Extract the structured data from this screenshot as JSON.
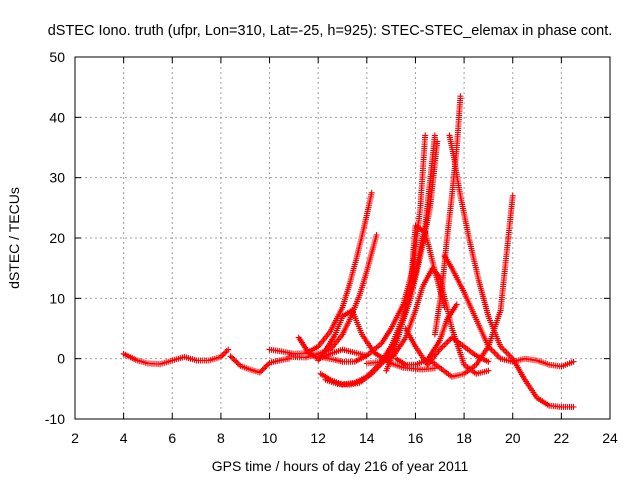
{
  "chart_data": {
    "type": "scatter",
    "title": "dSTEC Iono. truth (ufpr, Lon=310, Lat=-25, h=925): STEC-STEC_elemax in phase cont.",
    "xlabel": "GPS time / hours of day 216 of year 2011",
    "ylabel": "dSTEC  / TECUs",
    "xlim": [
      2,
      24
    ],
    "ylim": [
      -10,
      50
    ],
    "xticks": [
      2,
      4,
      6,
      8,
      10,
      12,
      14,
      16,
      18,
      20,
      22,
      24
    ],
    "yticks": [
      -10,
      0,
      10,
      20,
      30,
      40,
      50
    ],
    "grid": true,
    "marker": "+",
    "series_color": "#ff0000",
    "series": [
      {
        "x": [
          4.0,
          4.5,
          5.0,
          5.5,
          6.0,
          6.5,
          7.0,
          7.5,
          8.0,
          8.3
        ],
        "y": [
          0.8,
          -0.2,
          -0.8,
          -0.9,
          -0.3,
          0.3,
          -0.3,
          -0.3,
          0.3,
          1.5
        ]
      },
      {
        "x": [
          8.4,
          8.8,
          9.2,
          9.6,
          10.0,
          10.4,
          10.8
        ],
        "y": [
          0.4,
          -1.2,
          -1.8,
          -2.3,
          -0.7,
          -0.3,
          0.0
        ]
      },
      {
        "x": [
          10.0,
          10.5,
          11.0,
          11.5,
          12.0,
          12.5,
          13.0,
          13.3,
          13.6,
          13.9,
          14.2
        ],
        "y": [
          1.5,
          1.2,
          0.8,
          0.9,
          2.0,
          4.5,
          8.5,
          12.5,
          17.0,
          22.0,
          27.5
        ]
      },
      {
        "x": [
          11.2,
          11.6,
          12.0,
          12.5,
          13.0,
          13.5,
          14.0
        ],
        "y": [
          3.5,
          1.0,
          0.0,
          0.8,
          1.5,
          1.0,
          0.5
        ]
      },
      {
        "x": [
          10.8,
          11.5,
          12.0,
          12.5,
          13.0,
          13.3,
          13.7,
          14.0,
          14.4
        ],
        "y": [
          0.3,
          0.2,
          0.8,
          1.5,
          4.0,
          6.5,
          10.5,
          14.5,
          20.5
        ]
      },
      {
        "x": [
          12.0,
          12.4,
          12.7,
          13.0,
          13.4
        ],
        "y": [
          -0.3,
          2.0,
          4.0,
          7.0,
          8.0
        ]
      },
      {
        "x": [
          13.4,
          13.8,
          14.3,
          15.0,
          15.5,
          16.0,
          16.3,
          16.8
        ],
        "y": [
          8.0,
          4.0,
          1.0,
          -0.8,
          -1.5,
          -1.7,
          -1.8,
          -1.6
        ]
      },
      {
        "x": [
          12.2,
          12.7,
          13.0,
          13.5,
          14.0,
          14.6,
          15.0,
          15.5,
          15.9,
          16.2,
          16.4
        ],
        "y": [
          0.2,
          -0.2,
          -0.5,
          -0.5,
          0.5,
          2.5,
          5.0,
          9.0,
          15.0,
          25.0,
          37.0
        ]
      },
      {
        "x": [
          12.1,
          12.5,
          13.0,
          13.5,
          14.0,
          14.5,
          15.0,
          15.5,
          16.0,
          16.4,
          16.8
        ],
        "y": [
          -2.5,
          -3.5,
          -4.3,
          -4.0,
          -3.0,
          -1.0,
          2.0,
          7.0,
          14.0,
          22.0,
          37.0
        ]
      },
      {
        "x": [
          12.3,
          12.8,
          13.3,
          13.7,
          14.2,
          14.8,
          15.3,
          15.8,
          16.2,
          16.6,
          16.9
        ],
        "y": [
          -3.5,
          -4.2,
          -4.3,
          -4.0,
          -2.5,
          0.0,
          4.0,
          10.0,
          17.0,
          25.0,
          36.0
        ]
      },
      {
        "x": [
          14.0,
          14.6,
          15.1,
          15.6,
          16.0,
          16.3,
          16.7,
          17.0,
          17.5,
          18.0,
          18.5,
          19.0
        ],
        "y": [
          -0.8,
          -0.5,
          0.5,
          3.5,
          8.0,
          12.0,
          15.0,
          13.5,
          5.0,
          -1.0,
          -2.5,
          -2.0
        ]
      },
      {
        "x": [
          14.8,
          15.0,
          15.4,
          15.8,
          16.0,
          16.4,
          16.8,
          17.2
        ],
        "y": [
          -2.0,
          0.0,
          5.0,
          12.0,
          22.0,
          21.0,
          14.5,
          8.5
        ]
      },
      {
        "x": [
          15.6,
          16.0,
          16.5,
          17.0,
          17.5,
          18.0,
          18.5,
          19.0
        ],
        "y": [
          5.0,
          2.0,
          -1.0,
          1.5,
          3.5,
          2.0,
          0.5,
          -0.5
        ]
      },
      {
        "x": [
          15.2,
          15.6,
          16.0,
          16.5,
          17.0,
          17.3,
          17.7
        ],
        "y": [
          0.0,
          -1.0,
          -1.0,
          -0.2,
          3.0,
          6.5,
          9.0
        ]
      },
      {
        "x": [
          16.5,
          17.0,
          17.5,
          18.0,
          18.5,
          19.0,
          19.5,
          20.0
        ],
        "y": [
          0.0,
          -1.5,
          -3.0,
          -2.5,
          -1.0,
          2.0,
          8.0,
          27.0
        ]
      },
      {
        "x": [
          17.4,
          17.6,
          17.8,
          18.2,
          18.6,
          19.0,
          19.5,
          20.0,
          20.5,
          21.0,
          21.5,
          22.0,
          22.5
        ],
        "y": [
          37.0,
          33.0,
          28.0,
          20.0,
          13.0,
          7.0,
          2.0,
          0.0,
          -3.5,
          -6.5,
          -7.8,
          -8.0,
          -8.0
        ]
      },
      {
        "x": [
          17.2,
          17.5,
          18.0,
          18.5,
          19.0,
          19.5,
          20.0,
          20.5,
          21.0,
          21.5,
          22.0,
          22.5
        ],
        "y": [
          17.0,
          15.0,
          11.0,
          6.5,
          2.0,
          0.0,
          -0.5,
          0.0,
          -0.3,
          -1.0,
          -1.3,
          -0.5
        ]
      },
      {
        "x": [
          16.8,
          17.1,
          17.3,
          17.5,
          17.7,
          17.85
        ],
        "y": [
          4.0,
          12.0,
          20.0,
          27.0,
          35.0,
          43.5
        ]
      }
    ]
  }
}
